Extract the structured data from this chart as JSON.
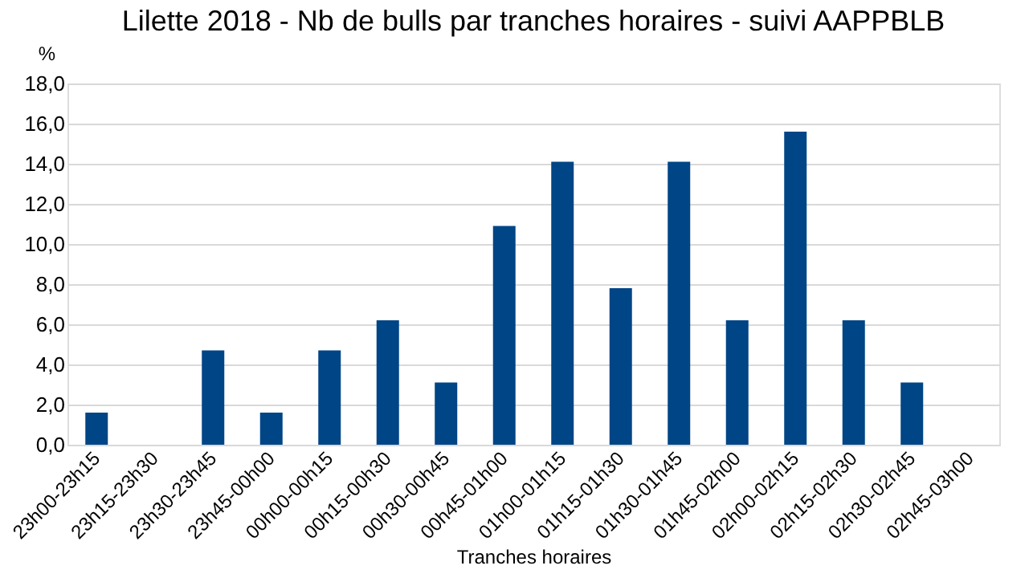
{
  "chart_data": {
    "type": "bar",
    "title": "Lilette 2018 - Nb de bulls par tranches horaires - suivi AAPPBLB",
    "xlabel": "Tranches horaires",
    "ylabel": "%",
    "categories": [
      "23h00-23h15",
      "23h15-23h30",
      "23h30-23h45",
      "23h45-00h00",
      "00h00-00h15",
      "00h15-00h30",
      "00h30-00h45",
      "00h45-01h00",
      "01h00-01h15",
      "01h15-01h30",
      "01h30-01h45",
      "01h45-02h00",
      "02h00-02h15",
      "02h15-02h30",
      "02h30-02h45",
      "02h45-03h00"
    ],
    "values": [
      1.6,
      0,
      4.7,
      1.6,
      4.7,
      6.2,
      3.1,
      10.9,
      14.1,
      7.8,
      14.1,
      6.2,
      15.6,
      6.2,
      3.1,
      0
    ],
    "color": "#004586",
    "ylim": [
      0,
      18
    ],
    "yticks": [
      {
        "value": 0,
        "label": "0,0"
      },
      {
        "value": 2,
        "label": "2,0"
      },
      {
        "value": 4,
        "label": "4,0"
      },
      {
        "value": 6,
        "label": "6,0"
      },
      {
        "value": 8,
        "label": "8,0"
      },
      {
        "value": 10,
        "label": "10,0"
      },
      {
        "value": 12,
        "label": "12,0"
      },
      {
        "value": 14,
        "label": "14,0"
      },
      {
        "value": 16,
        "label": "16,0"
      },
      {
        "value": 18,
        "label": "18,0"
      }
    ],
    "grid": "y"
  }
}
